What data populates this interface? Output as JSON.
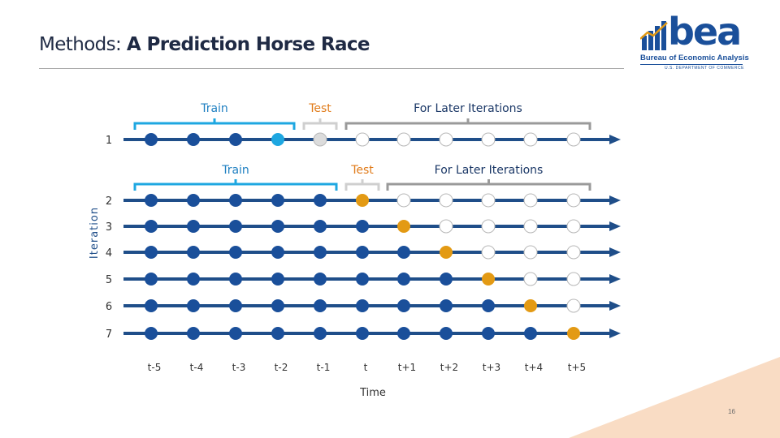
{
  "slide": {
    "title_prefix": "Methods: ",
    "title_bold": "A Prediction Horse Race",
    "page_number": "16"
  },
  "logo": {
    "word": "bea",
    "subtitle": "Bureau of Economic Analysis",
    "department": "U.S. DEPARTMENT OF COMMERCE"
  },
  "colors": {
    "line": "#1f4e89",
    "dark_blue": "#1a4f9a",
    "light_blue": "#1ea7e1",
    "orange": "#e39a14",
    "grey_fill": "#dcdcdc",
    "white_fill": "#ffffff",
    "bracket_train": "#1ea7e1",
    "bracket_test": "#cfcfcf",
    "bracket_later": "#9a9a9a",
    "corner": "#f9dcc4"
  },
  "diagram": {
    "y_axis_label": "Iteration",
    "x_axis_label": "Time",
    "time_labels": [
      "t-5",
      "t-4",
      "t-3",
      "t-2",
      "t-1",
      "t",
      "t+1",
      "t+2",
      "t+3",
      "t+4",
      "t+5"
    ],
    "iterations": [
      {
        "label": "1",
        "dots": [
          "blue",
          "blue",
          "blue",
          "lightblue",
          "grey",
          "white",
          "white",
          "white",
          "white",
          "white",
          "white"
        ]
      },
      {
        "label": "2",
        "dots": [
          "blue",
          "blue",
          "blue",
          "blue",
          "blue",
          "orange",
          "white",
          "white",
          "white",
          "white",
          "white"
        ]
      },
      {
        "label": "3",
        "dots": [
          "blue",
          "blue",
          "blue",
          "blue",
          "blue",
          "blue",
          "orange",
          "white",
          "white",
          "white",
          "white"
        ]
      },
      {
        "label": "4",
        "dots": [
          "blue",
          "blue",
          "blue",
          "blue",
          "blue",
          "blue",
          "blue",
          "orange",
          "white",
          "white",
          "white"
        ]
      },
      {
        "label": "5",
        "dots": [
          "blue",
          "blue",
          "blue",
          "blue",
          "blue",
          "blue",
          "blue",
          "blue",
          "orange",
          "white",
          "white"
        ]
      },
      {
        "label": "6",
        "dots": [
          "blue",
          "blue",
          "blue",
          "blue",
          "blue",
          "blue",
          "blue",
          "blue",
          "blue",
          "orange",
          "white"
        ]
      },
      {
        "label": "7",
        "dots": [
          "blue",
          "blue",
          "blue",
          "blue",
          "blue",
          "blue",
          "blue",
          "blue",
          "blue",
          "blue",
          "orange"
        ]
      }
    ],
    "iteration1_brackets": [
      {
        "label": "Train",
        "type": "train",
        "from": 0,
        "to": 3
      },
      {
        "label": "Test",
        "type": "test",
        "from": 4,
        "to": 4
      },
      {
        "label": "For Later Iterations",
        "type": "later",
        "from": 5,
        "to": 10
      }
    ],
    "iteration2_brackets": [
      {
        "label": "Train",
        "type": "train",
        "from": 0,
        "to": 4
      },
      {
        "label": "Test",
        "type": "test",
        "from": 5,
        "to": 5
      },
      {
        "label": "For Later Iterations",
        "type": "later",
        "from": 6,
        "to": 10
      }
    ]
  }
}
